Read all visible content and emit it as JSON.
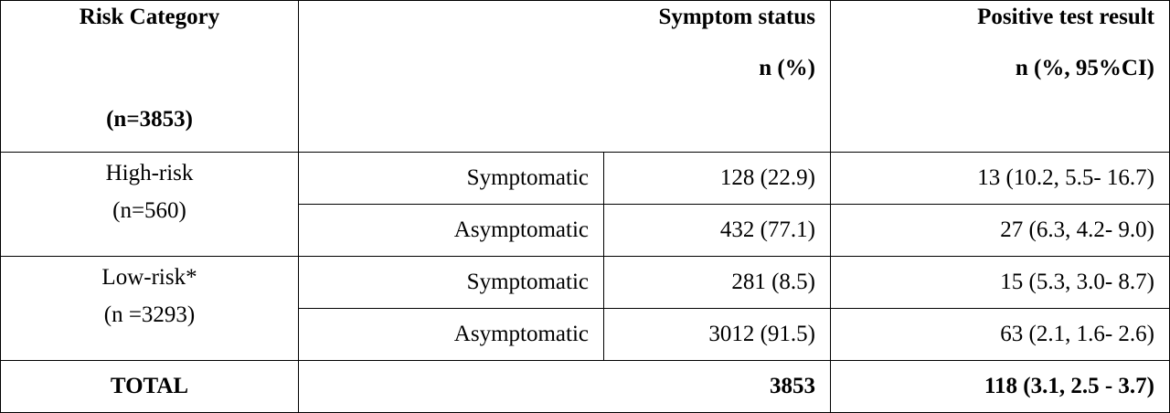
{
  "table": {
    "header": {
      "risk_category": "Risk Category",
      "risk_n": "(n=3853)",
      "symptom_status": [
        "Symptom status",
        "n (%)"
      ],
      "positive_test": [
        "Positive test result",
        "n (%, 95%CI)"
      ]
    },
    "groups": [
      {
        "label": "High-risk",
        "n": "(n=560)",
        "rows": [
          [
            "Symptomatic",
            "128 (22.9)",
            "13 (10.2, 5.5- 16.7)"
          ],
          [
            "Asymptomatic",
            "432 (77.1)",
            "27 (6.3, 4.2- 9.0)"
          ]
        ]
      },
      {
        "label": "Low-risk*",
        "n": "(n =3293)",
        "rows": [
          [
            "Symptomatic",
            "281 (8.5)",
            "15 (5.3, 3.0- 8.7)"
          ],
          [
            "Asymptomatic",
            "3012 (91.5)",
            "63 (2.1, 1.6- 2.6)"
          ]
        ]
      }
    ],
    "total": [
      "TOTAL",
      "3853",
      "118 (3.1, 2.5 - 3.7)"
    ]
  }
}
